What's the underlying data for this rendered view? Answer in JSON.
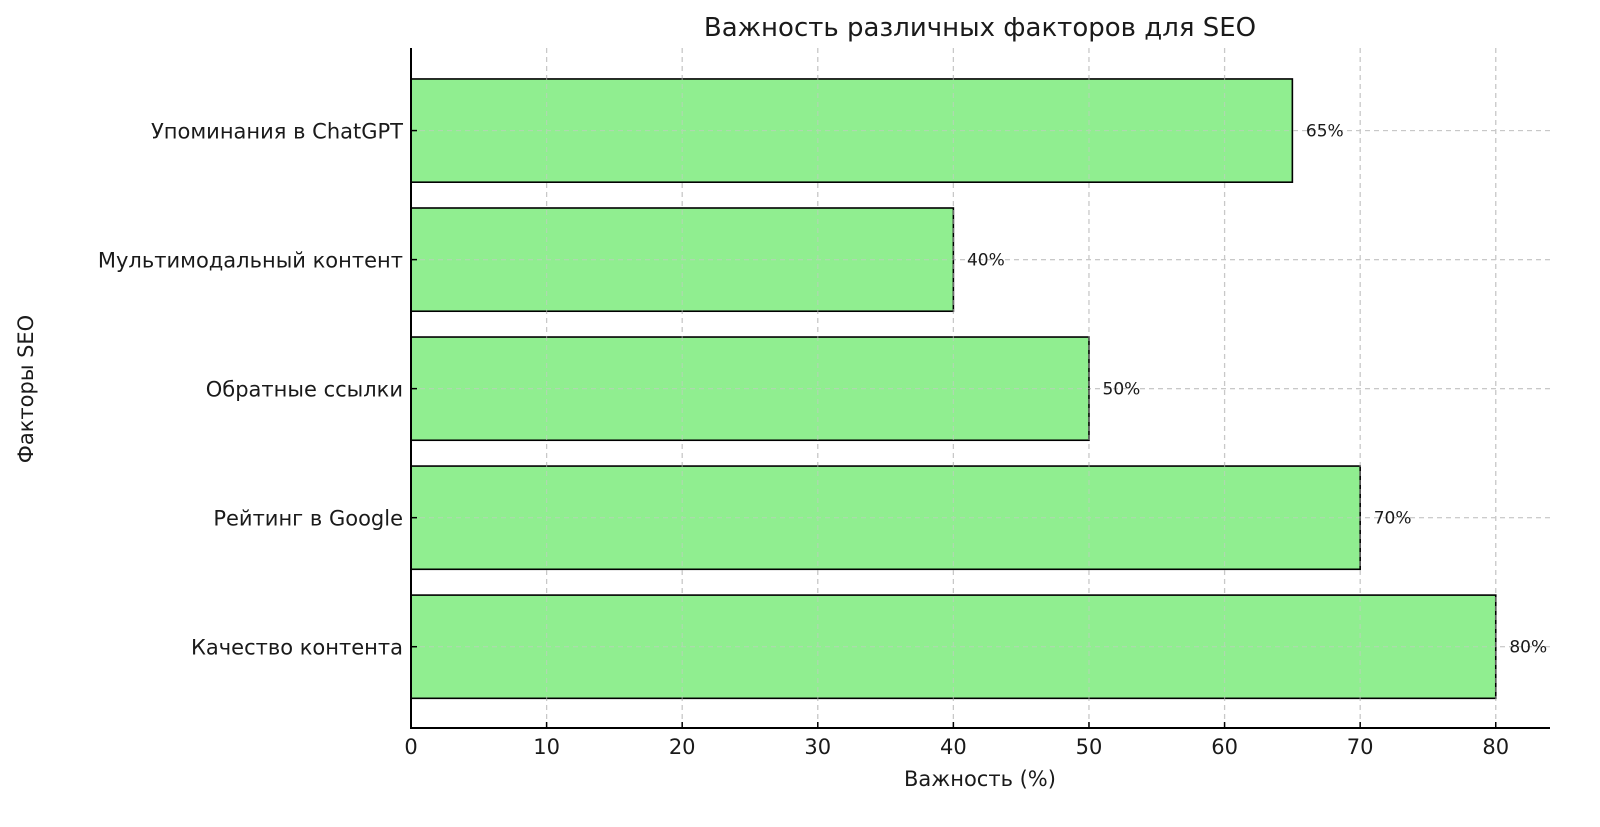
{
  "chart_data": {
    "type": "bar",
    "orientation": "horizontal",
    "title": "Важность различных факторов для SEO",
    "xlabel": "Важность (%)",
    "ylabel": "Факторы SEO",
    "categories": [
      "Качество контента",
      "Рейтинг в Google",
      "Обратные ссылки",
      "Мультимодальный контент",
      "Упоминания в ChatGPT"
    ],
    "values": [
      80,
      70,
      50,
      40,
      65
    ],
    "data_labels": [
      "80%",
      "70%",
      "50%",
      "40%",
      "65%"
    ],
    "xlim": [
      0,
      84
    ],
    "xticks": [
      0,
      10,
      20,
      30,
      40,
      50,
      60,
      70,
      80
    ],
    "xtick_labels": [
      "0",
      "10",
      "20",
      "30",
      "40",
      "50",
      "60",
      "70",
      "80"
    ],
    "grid": true,
    "grid_style": "dashed",
    "bar_color": "#90ee90",
    "bar_edge_color": "#000000"
  }
}
